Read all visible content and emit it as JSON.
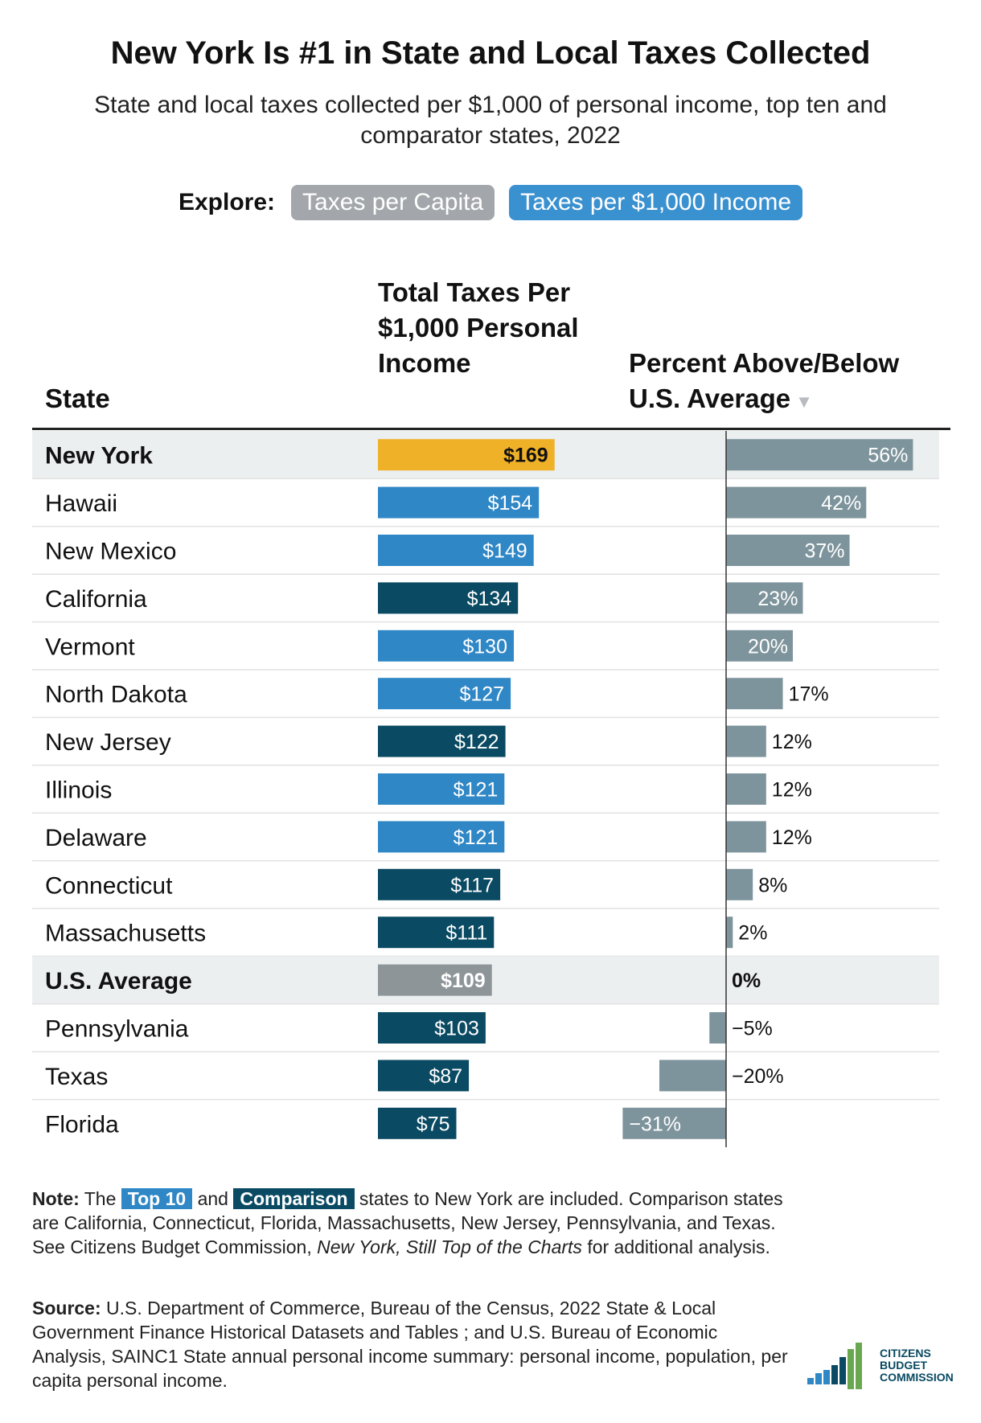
{
  "title": "New York Is #1 in State and Local Taxes Collected",
  "subtitle": "State and local taxes collected per $1,000 of personal income, top ten and comparator states, 2022",
  "explore": {
    "label": "Explore:",
    "buttons": [
      "Taxes per Capita",
      "Taxes per $1,000 Income"
    ],
    "active": "Taxes per $1,000 Income"
  },
  "headers": {
    "state": "State",
    "total": "Total Taxes Per $1,000 Personal Income",
    "percent": "Percent Above/Below U.S. Average",
    "sort_arrow": "▼"
  },
  "colors": {
    "highlight": "#efb127",
    "top10": "#2f87c6",
    "comparison": "#0a4a63",
    "average": "#8d9599",
    "percent_bar": "#7e949c",
    "row_highlight": "#eceff0"
  },
  "chart_data": {
    "type": "table",
    "columns": [
      "State",
      "Total Taxes Per $1,000 Personal Income",
      "Percent Above/Below U.S. Average"
    ],
    "sort": "Percent Above/Below U.S. Average, descending",
    "rows": [
      {
        "state": "New York",
        "total": 169,
        "total_label": "$169",
        "pct": 56,
        "pct_label": "56%",
        "group": "highlight"
      },
      {
        "state": "Hawaii",
        "total": 154,
        "total_label": "$154",
        "pct": 42,
        "pct_label": "42%",
        "group": "top10"
      },
      {
        "state": "New Mexico",
        "total": 149,
        "total_label": "$149",
        "pct": 37,
        "pct_label": "37%",
        "group": "top10"
      },
      {
        "state": "California",
        "total": 134,
        "total_label": "$134",
        "pct": 23,
        "pct_label": "23%",
        "group": "comparison"
      },
      {
        "state": "Vermont",
        "total": 130,
        "total_label": "$130",
        "pct": 20,
        "pct_label": "20%",
        "group": "top10"
      },
      {
        "state": "North Dakota",
        "total": 127,
        "total_label": "$127",
        "pct": 17,
        "pct_label": "17%",
        "group": "top10"
      },
      {
        "state": "New Jersey",
        "total": 122,
        "total_label": "$122",
        "pct": 12,
        "pct_label": "12%",
        "group": "comparison"
      },
      {
        "state": "Illinois",
        "total": 121,
        "total_label": "$121",
        "pct": 12,
        "pct_label": "12%",
        "group": "top10"
      },
      {
        "state": "Delaware",
        "total": 121,
        "total_label": "$121",
        "pct": 12,
        "pct_label": "12%",
        "group": "top10"
      },
      {
        "state": "Connecticut",
        "total": 117,
        "total_label": "$117",
        "pct": 8,
        "pct_label": "8%",
        "group": "comparison"
      },
      {
        "state": "Massachusetts",
        "total": 111,
        "total_label": "$111",
        "pct": 2,
        "pct_label": "2%",
        "group": "comparison"
      },
      {
        "state": "U.S. Average",
        "total": 109,
        "total_label": "$109",
        "pct": 0,
        "pct_label": "0%",
        "group": "average"
      },
      {
        "state": "Pennsylvania",
        "total": 103,
        "total_label": "$103",
        "pct": -5,
        "pct_label": "−5%",
        "group": "comparison"
      },
      {
        "state": "Texas",
        "total": 87,
        "total_label": "$87",
        "pct": -20,
        "pct_label": "−20%",
        "group": "comparison"
      },
      {
        "state": "Florida",
        "total": 75,
        "total_label": "$75",
        "pct": -31,
        "pct_label": "−31%",
        "group": "comparison"
      }
    ]
  },
  "note": {
    "label": "Note:",
    "pre": " The ",
    "tag_top10": "Top 10",
    "mid": " and ",
    "tag_comparison": "Comparison",
    "text1": " states to New York are included. Comparison states are California, Connecticut, Florida, Massachusetts, New Jersey, Pennsylvania, and Texas. See Citizens Budget Commission, ",
    "italic": "New York, Still Top of the Charts",
    "text2": " for additional analysis."
  },
  "source": {
    "label": "Source:",
    "text": " U.S. Department of Commerce, Bureau of the Census, 2022 State & Local Government Finance Historical Datasets and Tables ; and U.S. Bureau of Economic Analysis, SAINC1 State annual personal income summary: personal income, population, per capita personal income."
  },
  "logo": {
    "lines": [
      "CITIZENS",
      "BUDGET",
      "COMMISSION"
    ]
  }
}
